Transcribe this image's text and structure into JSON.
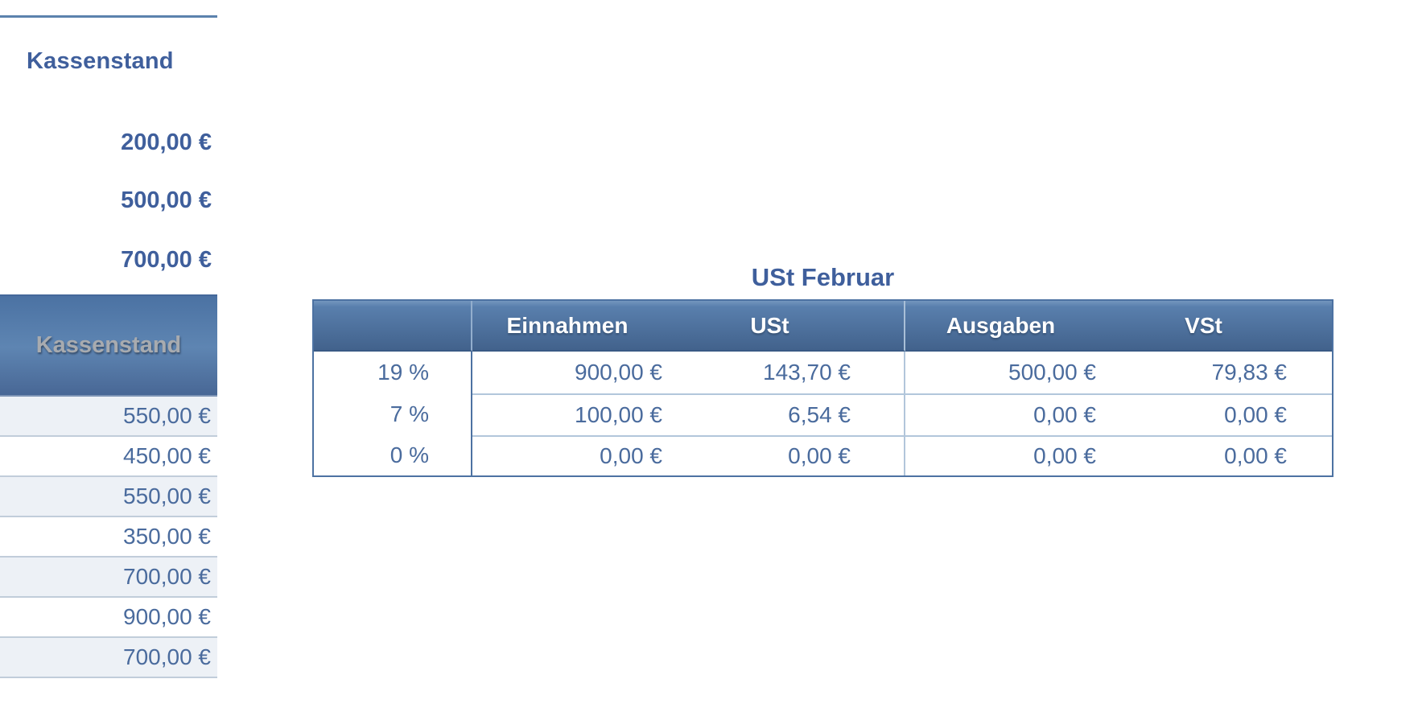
{
  "summary": {
    "title": "Kassenstand",
    "values": [
      "200,00 €",
      "500,00 €",
      "700,00 €"
    ]
  },
  "kassenstand_table": {
    "header": "Kassenstand",
    "rows": [
      "550,00 €",
      "450,00 €",
      "550,00 €",
      "350,00 €",
      "700,00 €",
      "900,00 €",
      "700,00 €"
    ]
  },
  "ust_table": {
    "title": "USt Februar",
    "columns": {
      "rate": "",
      "einnahmen": "Einnahmen",
      "ust": "USt",
      "ausgaben": "Ausgaben",
      "vst": "VSt"
    },
    "rows": [
      {
        "rate": "19 %",
        "einnahmen": "900,00 €",
        "ust": "143,70 €",
        "ausgaben": "500,00 €",
        "vst": "79,83 €"
      },
      {
        "rate": "7 %",
        "einnahmen": "100,00 €",
        "ust": "6,54 €",
        "ausgaben": "0,00 €",
        "vst": "0,00 €"
      },
      {
        "rate": "0 %",
        "einnahmen": "0,00 €",
        "ust": "0,00 €",
        "ausgaben": "0,00 €",
        "vst": "0,00 €"
      }
    ]
  },
  "colors": {
    "header_gradient_top": "#5d85b3",
    "header_gradient_bottom": "#42628c",
    "title_text": "#3f5f9c",
    "cell_text": "#4a6b9d",
    "header_label_gray": "#a8abaf",
    "row_alt_bg": "#edf1f6",
    "grid_line_light": "#b2c6db",
    "grid_line_left": "#c1cdda",
    "table_border": "#4d72a2",
    "top_rule": "#5b82ad"
  }
}
